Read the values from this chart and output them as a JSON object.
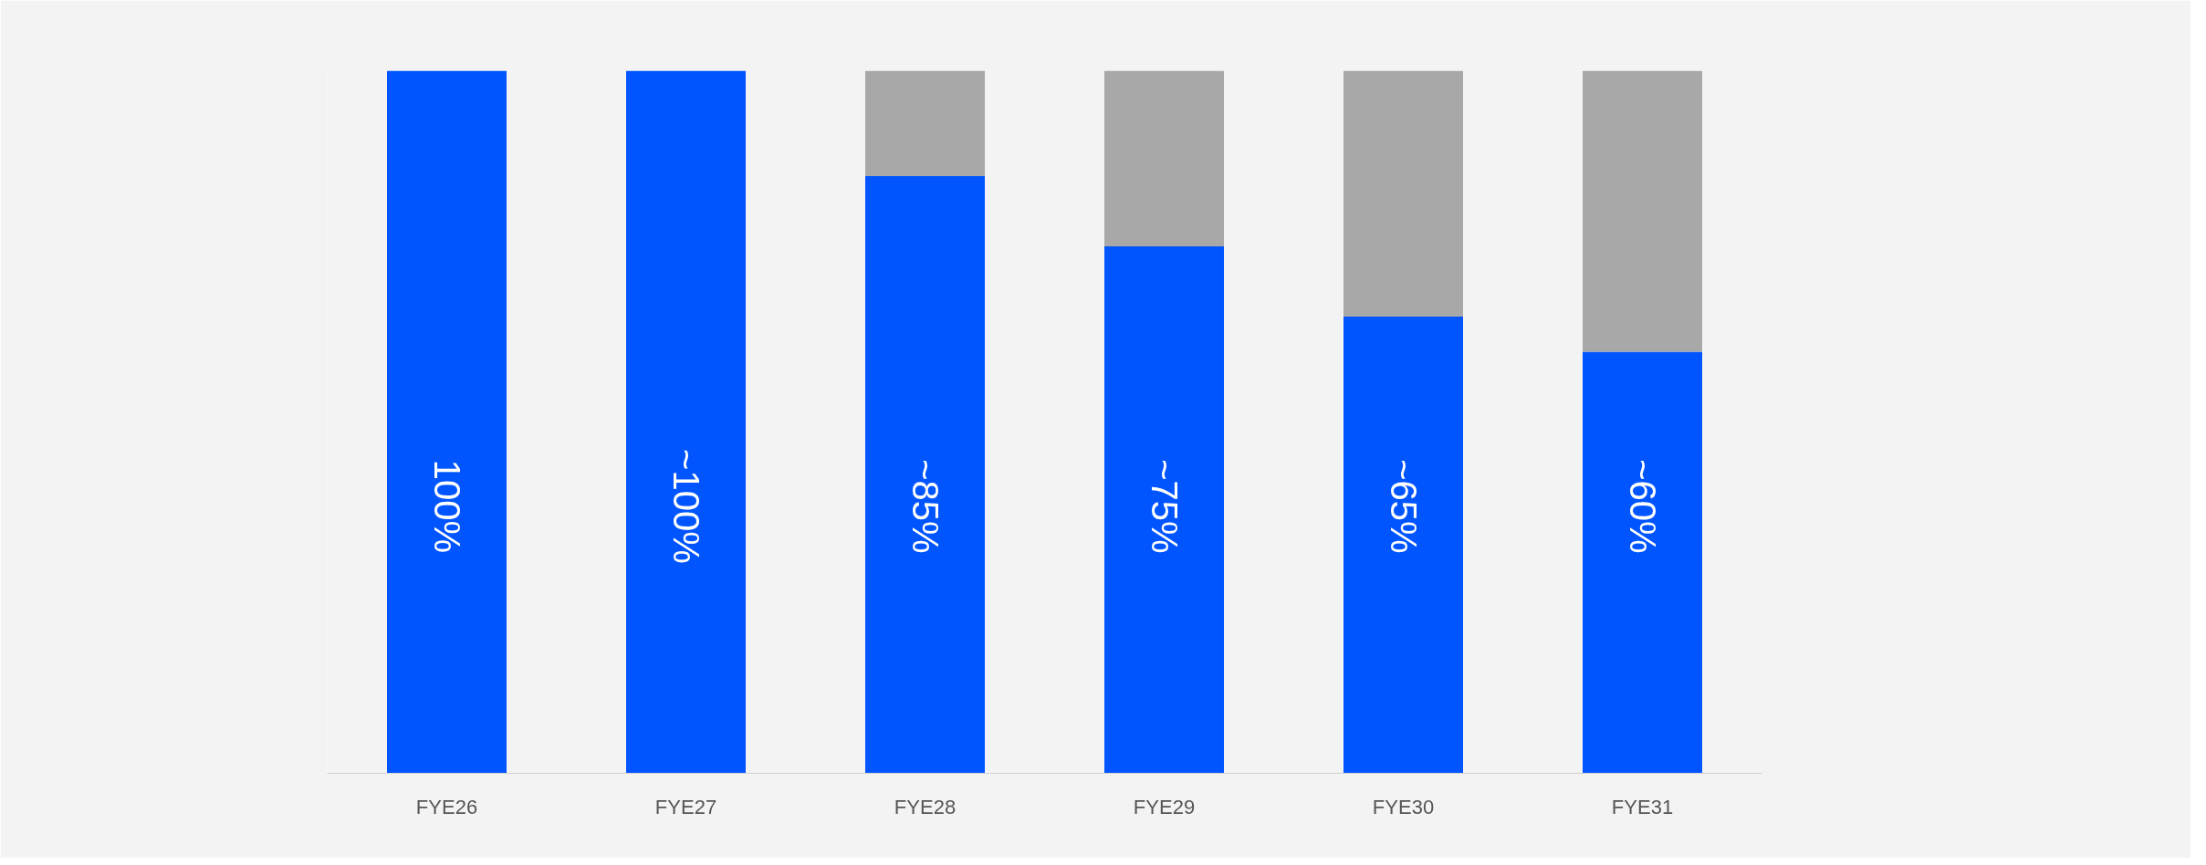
{
  "chart_data": {
    "type": "bar",
    "stacked": true,
    "categories": [
      "FYE26",
      "FYE27",
      "FYE28",
      "FYE29",
      "FYE30",
      "FYE31"
    ],
    "ylim": [
      0,
      100
    ],
    "tick_labels": "x",
    "series": [
      {
        "color": "#0055ff",
        "values": [
          100,
          100,
          85,
          75,
          65,
          60
        ],
        "value_labels": [
          "100%",
          "~100%",
          "~85%",
          "~75%",
          "~65%",
          "~60%"
        ]
      },
      {
        "color": "#a8a8a8",
        "values": [
          0,
          0,
          15,
          25,
          35,
          40
        ]
      }
    ],
    "grid": false
  }
}
